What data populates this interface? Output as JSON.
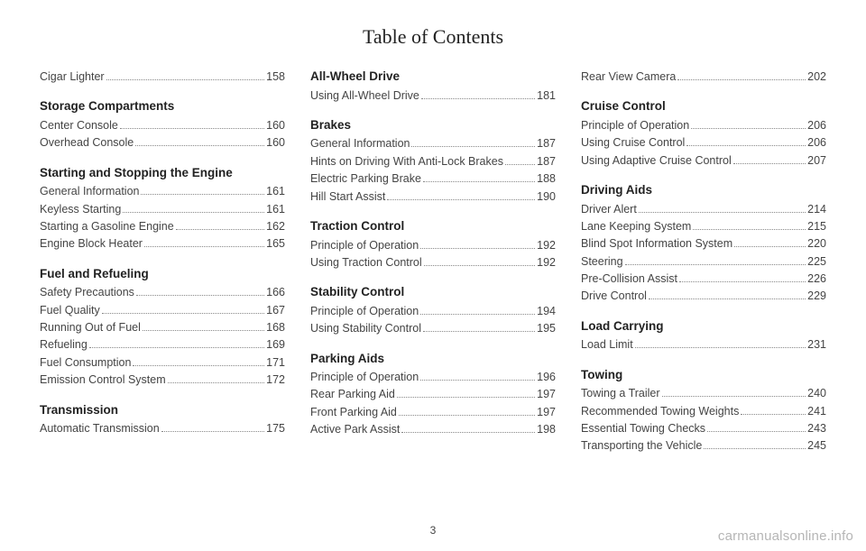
{
  "title": "Table of Contents",
  "pageNumber": "3",
  "watermark": "carmanualsonline.info",
  "columns": [
    [
      {
        "type": "entry",
        "label": "Cigar Lighter",
        "page": "158"
      },
      {
        "type": "section",
        "label": "Storage Compartments"
      },
      {
        "type": "entry",
        "label": "Center Console",
        "page": "160"
      },
      {
        "type": "entry",
        "label": "Overhead Console",
        "page": "160"
      },
      {
        "type": "section",
        "label": "Starting and Stopping the Engine"
      },
      {
        "type": "entry",
        "label": "General Information",
        "page": "161"
      },
      {
        "type": "entry",
        "label": "Keyless Starting",
        "page": "161"
      },
      {
        "type": "entry",
        "label": "Starting a Gasoline Engine",
        "page": "162"
      },
      {
        "type": "entry",
        "label": "Engine Block Heater",
        "page": "165"
      },
      {
        "type": "section",
        "label": "Fuel and Refueling"
      },
      {
        "type": "entry",
        "label": "Safety Precautions",
        "page": "166"
      },
      {
        "type": "entry",
        "label": "Fuel Quality",
        "page": "167"
      },
      {
        "type": "entry",
        "label": "Running Out of Fuel",
        "page": "168"
      },
      {
        "type": "entry",
        "label": "Refueling",
        "page": "169"
      },
      {
        "type": "entry",
        "label": "Fuel Consumption",
        "page": "171"
      },
      {
        "type": "entry",
        "label": "Emission Control System",
        "page": "172"
      },
      {
        "type": "section",
        "label": "Transmission"
      },
      {
        "type": "entry",
        "label": "Automatic Transmission",
        "page": "175"
      }
    ],
    [
      {
        "type": "section",
        "label": "All-Wheel Drive",
        "first": true
      },
      {
        "type": "entry",
        "label": "Using All-Wheel Drive",
        "page": "181"
      },
      {
        "type": "section",
        "label": "Brakes"
      },
      {
        "type": "entry",
        "label": "General Information",
        "page": "187"
      },
      {
        "type": "entry",
        "label": "Hints on Driving With Anti-Lock Brakes",
        "page": "187",
        "multi": true
      },
      {
        "type": "entry",
        "label": "Electric Parking Brake",
        "page": "188"
      },
      {
        "type": "entry",
        "label": "Hill Start Assist",
        "page": "190"
      },
      {
        "type": "section",
        "label": "Traction Control"
      },
      {
        "type": "entry",
        "label": "Principle of Operation",
        "page": "192"
      },
      {
        "type": "entry",
        "label": "Using Traction Control",
        "page": "192"
      },
      {
        "type": "section",
        "label": "Stability Control"
      },
      {
        "type": "entry",
        "label": "Principle of Operation",
        "page": "194"
      },
      {
        "type": "entry",
        "label": "Using Stability Control",
        "page": "195"
      },
      {
        "type": "section",
        "label": "Parking Aids"
      },
      {
        "type": "entry",
        "label": "Principle of Operation",
        "page": "196"
      },
      {
        "type": "entry",
        "label": "Rear Parking Aid",
        "page": "197"
      },
      {
        "type": "entry",
        "label": "Front Parking Aid",
        "page": "197"
      },
      {
        "type": "entry",
        "label": "Active Park Assist",
        "page": "198"
      }
    ],
    [
      {
        "type": "entry",
        "label": "Rear View Camera",
        "page": "202"
      },
      {
        "type": "section",
        "label": "Cruise Control"
      },
      {
        "type": "entry",
        "label": "Principle of Operation",
        "page": "206"
      },
      {
        "type": "entry",
        "label": "Using Cruise Control",
        "page": "206"
      },
      {
        "type": "entry",
        "label": "Using Adaptive Cruise Control",
        "page": "207"
      },
      {
        "type": "section",
        "label": "Driving Aids"
      },
      {
        "type": "entry",
        "label": "Driver Alert",
        "page": "214"
      },
      {
        "type": "entry",
        "label": "Lane Keeping System",
        "page": "215"
      },
      {
        "type": "entry",
        "label": "Blind Spot Information System",
        "page": "220"
      },
      {
        "type": "entry",
        "label": "Steering",
        "page": "225"
      },
      {
        "type": "entry",
        "label": "Pre-Collision Assist",
        "page": "226"
      },
      {
        "type": "entry",
        "label": "Drive Control",
        "page": "229"
      },
      {
        "type": "section",
        "label": "Load Carrying"
      },
      {
        "type": "entry",
        "label": "Load Limit",
        "page": "231"
      },
      {
        "type": "section",
        "label": "Towing"
      },
      {
        "type": "entry",
        "label": "Towing a Trailer",
        "page": "240"
      },
      {
        "type": "entry",
        "label": "Recommended Towing Weights",
        "page": "241"
      },
      {
        "type": "entry",
        "label": "Essential Towing Checks",
        "page": "243"
      },
      {
        "type": "entry",
        "label": "Transporting the Vehicle",
        "page": "245"
      }
    ]
  ]
}
